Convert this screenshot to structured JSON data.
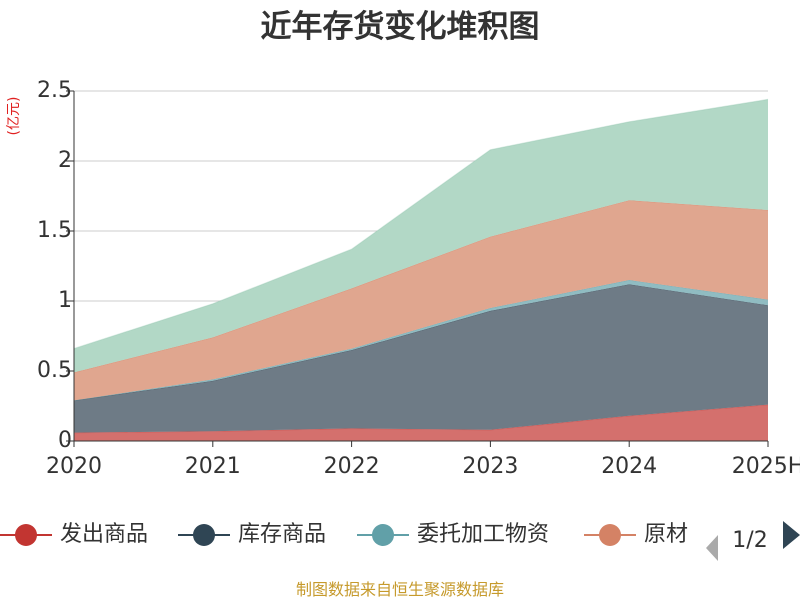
{
  "chart_data": {
    "type": "area",
    "stacked": true,
    "title": "近年存货变化堆积图",
    "ylabel": "(亿元)",
    "ylim": [
      0,
      2.5
    ],
    "yticks": [
      0,
      0.5,
      1,
      1.5,
      2,
      2.5
    ],
    "ytick_labels": [
      "0",
      "0.5",
      "1",
      "1.5",
      "2",
      "2.5"
    ],
    "categories": [
      "2020",
      "2021",
      "2022",
      "2023",
      "2024",
      "2025H"
    ],
    "grid": true,
    "legend_position": "bottom",
    "series": [
      {
        "name": "发出商品",
        "color": "#c23531",
        "fill": "#d4706d",
        "values": [
          0.06,
          0.07,
          0.09,
          0.08,
          0.18,
          0.26
        ]
      },
      {
        "name": "库存商品",
        "color": "#2f4554",
        "fill": "#6e7b86",
        "values": [
          0.23,
          0.36,
          0.56,
          0.85,
          0.94,
          0.71
        ]
      },
      {
        "name": "委托加工物资",
        "color": "#61a0a8",
        "fill": "#90bcc2",
        "values": [
          0.0,
          0.01,
          0.01,
          0.02,
          0.03,
          0.04
        ]
      },
      {
        "name": "原材料",
        "color": "#d48265",
        "fill": "#e0a68f",
        "values": [
          0.2,
          0.3,
          0.43,
          0.51,
          0.57,
          0.64
        ]
      },
      {
        "name": "",
        "color": "#91c7ae",
        "fill": "#b2d8c6",
        "values": [
          0.17,
          0.24,
          0.28,
          0.62,
          0.56,
          0.79
        ]
      }
    ],
    "legend_visible": [
      "发出商品",
      "库存商品",
      "委托加工物资",
      "原材"
    ],
    "legend_page": "1/2",
    "source": "制图数据来自恒生聚源数据库"
  }
}
